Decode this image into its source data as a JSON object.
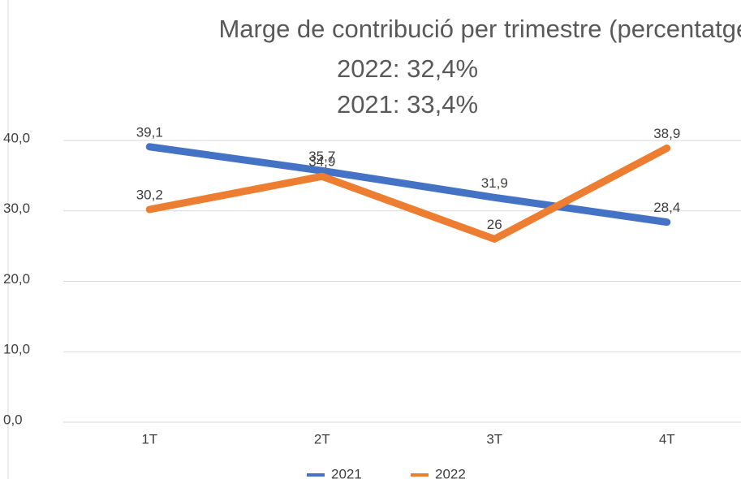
{
  "chart_data": {
    "type": "line",
    "title": "Marge de contribució per trimestre (percentatge)",
    "subtitle": [
      "2022: 32,4%",
      "2021: 33,4%"
    ],
    "categories": [
      "1T",
      "2T",
      "3T",
      "4T"
    ],
    "series": [
      {
        "name": "2021",
        "color": "#4472c4",
        "values": [
          39.1,
          35.7,
          31.9,
          28.4
        ],
        "value_labels": [
          "39,1",
          "35,7",
          "31,9",
          "28,4"
        ]
      },
      {
        "name": "2022",
        "color": "#ed7d31",
        "values": [
          30.2,
          34.9,
          26,
          38.9
        ],
        "value_labels": [
          "30,2",
          "34,9",
          "26",
          "38,9"
        ]
      }
    ],
    "ylim": [
      0,
      40
    ],
    "yticks": [
      {
        "value": 0,
        "label": "0,0"
      },
      {
        "value": 10,
        "label": "10,0"
      },
      {
        "value": 20,
        "label": "20,0"
      },
      {
        "value": 30,
        "label": "30,0"
      },
      {
        "value": 40,
        "label": "40,0"
      }
    ],
    "grid": true,
    "legend": "bottom"
  }
}
